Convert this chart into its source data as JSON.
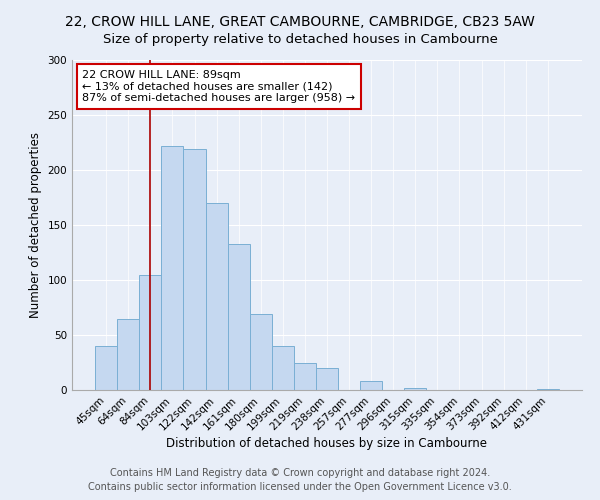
{
  "title": "22, CROW HILL LANE, GREAT CAMBOURNE, CAMBRIDGE, CB23 5AW",
  "subtitle": "Size of property relative to detached houses in Cambourne",
  "xlabel": "Distribution of detached houses by size in Cambourne",
  "ylabel": "Number of detached properties",
  "bar_labels": [
    "45sqm",
    "64sqm",
    "84sqm",
    "103sqm",
    "122sqm",
    "142sqm",
    "161sqm",
    "180sqm",
    "199sqm",
    "219sqm",
    "238sqm",
    "257sqm",
    "277sqm",
    "296sqm",
    "315sqm",
    "335sqm",
    "354sqm",
    "373sqm",
    "392sqm",
    "412sqm",
    "431sqm"
  ],
  "bar_values": [
    40,
    65,
    105,
    222,
    219,
    170,
    133,
    69,
    40,
    25,
    20,
    0,
    8,
    0,
    2,
    0,
    0,
    0,
    0,
    0,
    1
  ],
  "bar_color": "#c5d8f0",
  "bar_edge_color": "#7aafd4",
  "vline_x_index": 2,
  "vline_color": "#aa0000",
  "annotation_text": "22 CROW HILL LANE: 89sqm\n← 13% of detached houses are smaller (142)\n87% of semi-detached houses are larger (958) →",
  "annotation_box_color": "#ffffff",
  "annotation_box_edge": "#cc0000",
  "ylim": [
    0,
    300
  ],
  "yticks": [
    0,
    50,
    100,
    150,
    200,
    250,
    300
  ],
  "footer_line1": "Contains HM Land Registry data © Crown copyright and database right 2024.",
  "footer_line2": "Contains public sector information licensed under the Open Government Licence v3.0.",
  "background_color": "#e8eef8",
  "plot_bg_color": "#e8eef8",
  "title_fontsize": 10,
  "subtitle_fontsize": 9.5,
  "axis_label_fontsize": 8.5,
  "tick_fontsize": 7.5,
  "footer_fontsize": 7.0
}
